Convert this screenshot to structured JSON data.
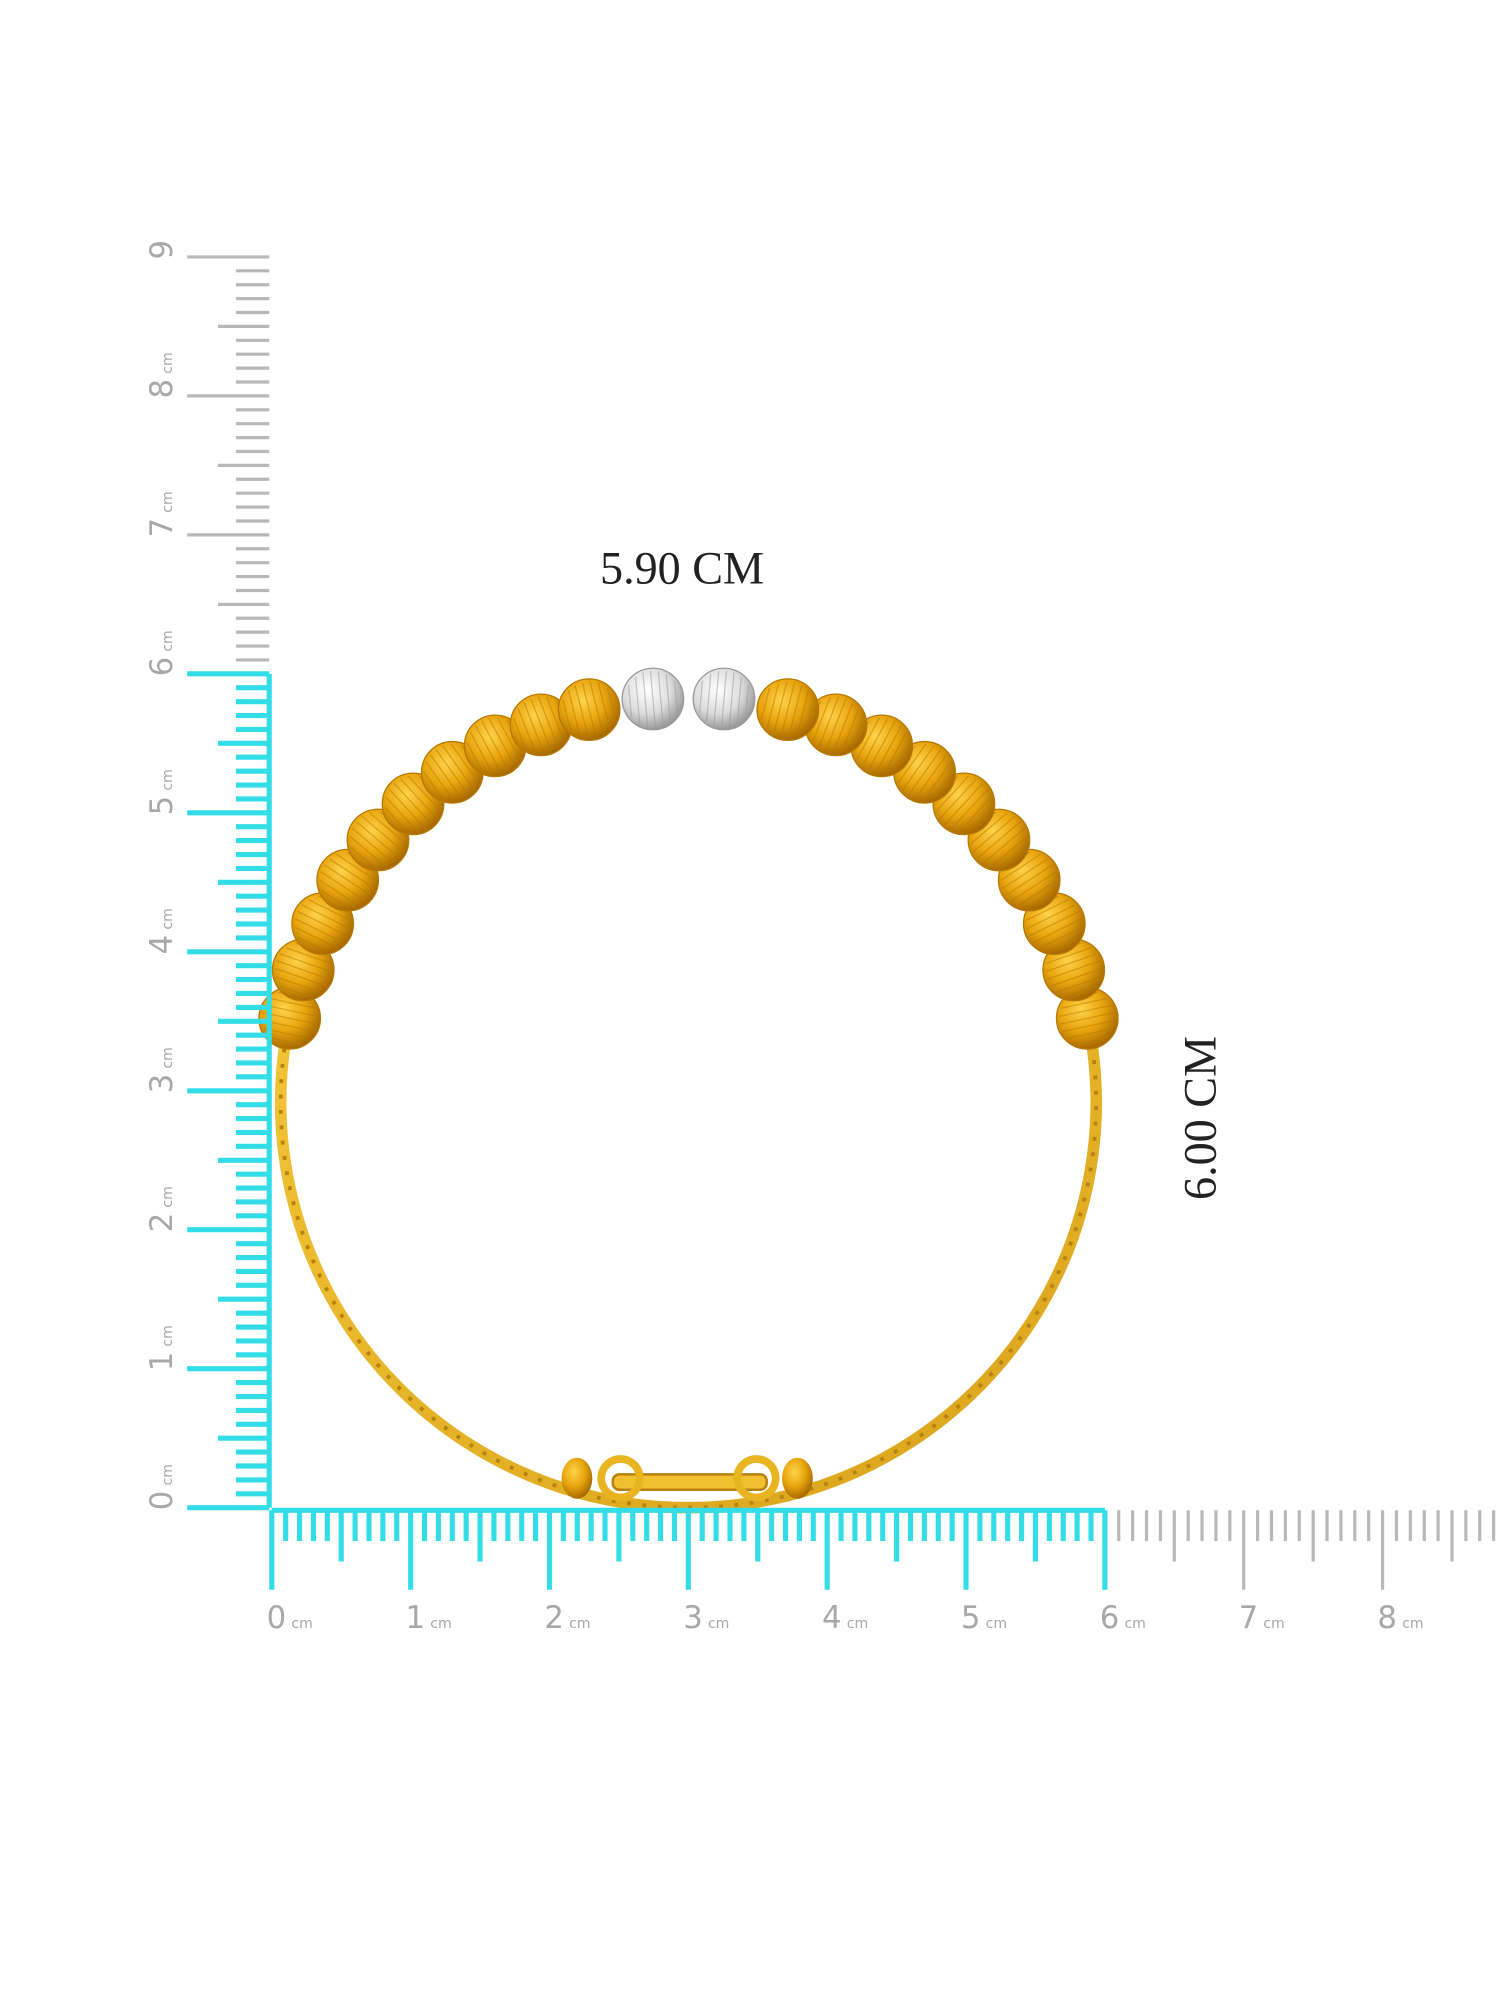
{
  "horizontal_ruler": {
    "labels": [
      {
        "number": "0",
        "unit": "cm"
      },
      {
        "number": "1",
        "unit": "cm"
      },
      {
        "number": "2",
        "unit": "cm"
      },
      {
        "number": "3",
        "unit": "cm"
      },
      {
        "number": "4",
        "unit": "cm"
      },
      {
        "number": "5",
        "unit": "cm"
      },
      {
        "number": "6",
        "unit": "cm"
      },
      {
        "number": "7",
        "unit": "cm"
      },
      {
        "number": "8",
        "unit": "cm"
      }
    ]
  },
  "vertical_ruler": {
    "labels": [
      {
        "number": "0",
        "unit": "cm"
      },
      {
        "number": "1",
        "unit": "cm"
      },
      {
        "number": "2",
        "unit": "cm"
      },
      {
        "number": "3",
        "unit": "cm"
      },
      {
        "number": "4",
        "unit": "cm"
      },
      {
        "number": "5",
        "unit": "cm"
      },
      {
        "number": "6",
        "unit": "cm"
      },
      {
        "number": "7",
        "unit": "cm"
      },
      {
        "number": "8",
        "unit": "cm"
      },
      {
        "number": "9"
      }
    ]
  },
  "dimensions": {
    "width": "5.90 CM",
    "height": "6.00 CM"
  }
}
